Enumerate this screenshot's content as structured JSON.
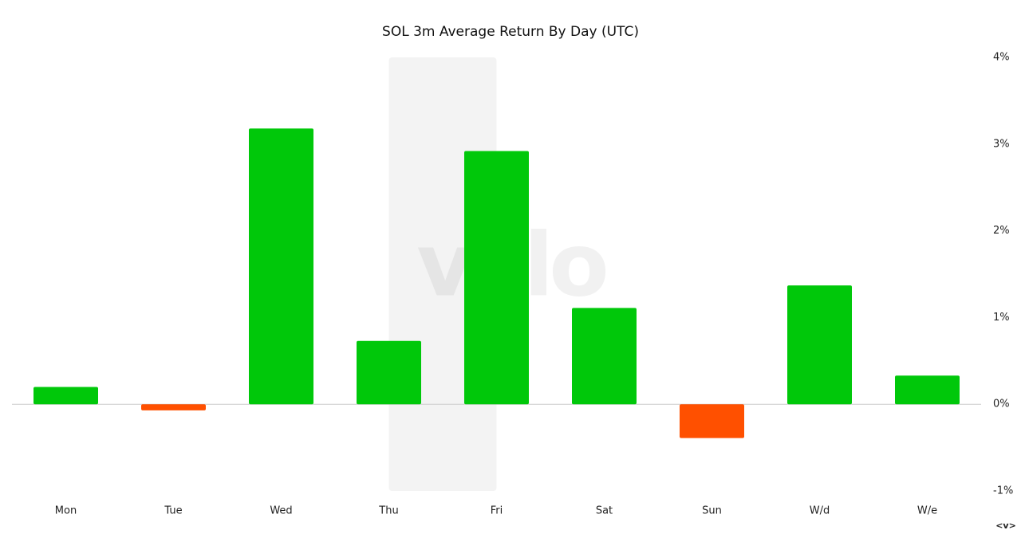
{
  "chart_data": {
    "type": "bar",
    "title": "SOL 3m Average Return By Day (UTC)",
    "categories": [
      "Mon",
      "Tue",
      "Wed",
      "Thu",
      "Fri",
      "Sat",
      "Sun",
      "W/d",
      "W/e"
    ],
    "values": [
      0.2,
      -0.07,
      3.18,
      0.73,
      2.92,
      1.11,
      -0.39,
      1.37,
      0.33
    ],
    "positive_color": "#00c80a",
    "negative_color": "#ff5000",
    "ylim": [
      -1,
      4
    ],
    "yticks": [
      {
        "value": -1,
        "label": "-1%"
      },
      {
        "value": 0,
        "label": "0%"
      },
      {
        "value": 1,
        "label": "1%"
      },
      {
        "value": 2,
        "label": "2%"
      },
      {
        "value": 3,
        "label": "3%"
      },
      {
        "value": 4,
        "label": "4%"
      }
    ],
    "grid": false,
    "highlight": "Thu",
    "watermark": "velo",
    "footer_mark": "<v>"
  }
}
